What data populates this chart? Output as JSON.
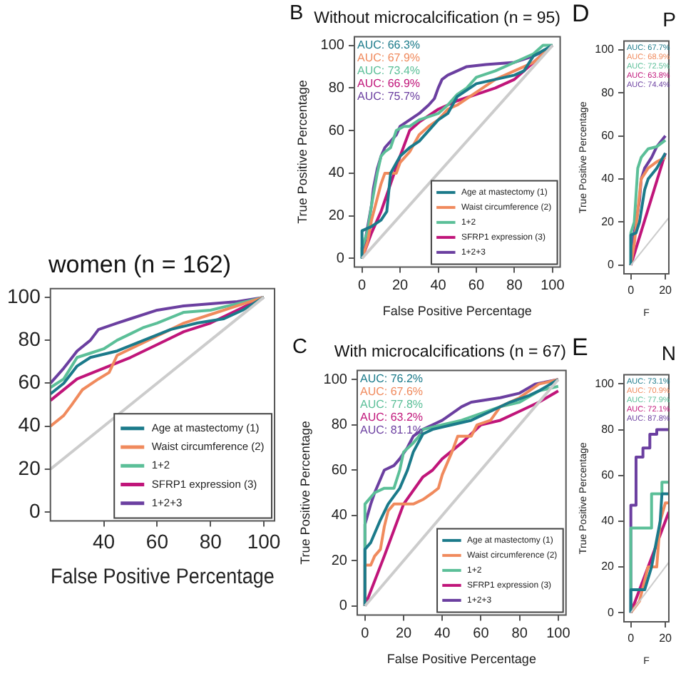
{
  "chart_data": [
    {
      "type": "line",
      "title": "women (n = 162)",
      "xlabel": "False Positive Percentage",
      "xlim": [
        20,
        104
      ],
      "xticks": [
        40,
        60,
        80,
        100
      ],
      "ylim": [
        -4,
        104
      ],
      "yticks": [
        0,
        20,
        40,
        60,
        80,
        100
      ],
      "legend": "bottom right",
      "series": [
        {
          "x": [
            20,
            100
          ],
          "values": [
            20,
            100
          ],
          "color": "#cccccc"
        },
        {
          "name": "Age at mastectomy (1)",
          "color": "#1b7a8a",
          "x": [
            20,
            25,
            30,
            35,
            45,
            55,
            65,
            75,
            85,
            92,
            100
          ],
          "values": [
            55,
            60,
            68,
            72,
            75,
            80,
            85,
            88,
            90,
            94,
            100
          ]
        },
        {
          "name": "Waist circumference (2)",
          "color": "#f08a5d",
          "x": [
            20,
            25,
            28,
            32,
            38,
            42,
            45,
            50,
            60,
            70,
            80,
            90,
            100
          ],
          "values": [
            40,
            45,
            50,
            57,
            62,
            65,
            73,
            76,
            82,
            88,
            92,
            96,
            100
          ]
        },
        {
          "name": "1+2",
          "color": "#5bbf98",
          "x": [
            20,
            25,
            30,
            35,
            40,
            45,
            50,
            55,
            60,
            70,
            80,
            90,
            100
          ],
          "values": [
            58,
            62,
            72,
            74,
            76,
            80,
            83,
            86,
            88,
            93,
            94,
            97,
            100
          ]
        },
        {
          "name": "SFRP1 expression (3)",
          "color": "#c0157a",
          "x": [
            20,
            30,
            40,
            50,
            60,
            70,
            80,
            90,
            100
          ],
          "values": [
            52,
            62,
            67,
            72,
            78,
            84,
            88,
            94,
            100
          ]
        },
        {
          "name": "1+2+3",
          "color": "#6b3fa0",
          "x": [
            20,
            25,
            30,
            35,
            38,
            45,
            50,
            60,
            70,
            80,
            90,
            100
          ],
          "values": [
            60,
            67,
            75,
            80,
            85,
            88,
            90,
            94,
            96,
            97,
            98,
            100
          ]
        }
      ]
    },
    {
      "type": "line",
      "title": "Without microcalcification (n = 95)",
      "xlabel": "False Positive Percentage",
      "ylabel": "True Positive Percentage",
      "xlim": [
        -4,
        104
      ],
      "xticks": [
        0,
        20,
        40,
        60,
        80,
        100
      ],
      "ylim": [
        -4,
        104
      ],
      "yticks": [
        0,
        20,
        40,
        60,
        80,
        100
      ],
      "legend": "bottom right",
      "annotations": [
        "B",
        "AUC: 66.3%",
        "AUC: 67.9%",
        "AUC: 73.4%",
        "AUC: 66.9%",
        "AUC: 75.7%"
      ],
      "series": [
        {
          "x": [
            0,
            100
          ],
          "values": [
            0,
            100
          ],
          "color": "#cccccc"
        },
        {
          "name": "Age at mastectomy (1)",
          "color": "#1b7a8a",
          "x": [
            0,
            0,
            5,
            10,
            13,
            15,
            20,
            25,
            30,
            35,
            40,
            45,
            50,
            60,
            70,
            80,
            85,
            90,
            100
          ],
          "values": [
            0,
            13,
            15,
            18,
            22,
            40,
            48,
            52,
            55,
            60,
            65,
            68,
            76,
            82,
            84,
            86,
            88,
            95,
            100
          ]
        },
        {
          "name": "Waist circumference (2)",
          "color": "#f08a5d",
          "x": [
            0,
            3,
            5,
            10,
            12,
            18,
            20,
            25,
            30,
            35,
            40,
            45,
            50,
            60,
            70,
            80,
            90,
            100
          ],
          "values": [
            0,
            8,
            18,
            35,
            40,
            40,
            45,
            50,
            58,
            62,
            65,
            70,
            72,
            78,
            84,
            88,
            92,
            100
          ]
        },
        {
          "name": "1+2",
          "color": "#5bbf98",
          "x": [
            0,
            0,
            3,
            5,
            8,
            10,
            12,
            15,
            18,
            22,
            25,
            30,
            40,
            45,
            50,
            55,
            60,
            70,
            80,
            90,
            95,
            100
          ],
          "values": [
            0,
            5,
            13,
            25,
            40,
            48,
            50,
            52,
            60,
            62,
            62,
            65,
            68,
            72,
            77,
            80,
            85,
            88,
            92,
            96,
            100,
            100
          ]
        },
        {
          "name": "SFRP1 expression (3)",
          "color": "#c0157a",
          "x": [
            0,
            5,
            10,
            15,
            20,
            25,
            30,
            40,
            50,
            60,
            70,
            80,
            90,
            100
          ],
          "values": [
            0,
            12,
            22,
            35,
            48,
            60,
            64,
            70,
            74,
            77,
            80,
            84,
            92,
            100
          ]
        },
        {
          "name": "1+2+3",
          "color": "#6b3fa0",
          "x": [
            0,
            2,
            5,
            6,
            8,
            10,
            12,
            15,
            18,
            20,
            25,
            30,
            35,
            38,
            40,
            42,
            45,
            50,
            55,
            65,
            80,
            90,
            95,
            100
          ],
          "values": [
            0,
            10,
            25,
            33,
            42,
            48,
            52,
            55,
            58,
            62,
            65,
            68,
            72,
            75,
            80,
            84,
            86,
            88,
            90,
            91,
            92,
            95,
            97,
            100
          ]
        }
      ]
    },
    {
      "type": "line",
      "title": "With microcalcifications (n = 67)",
      "xlabel": "False Positive Percentage",
      "ylabel": "True Positive Percentage",
      "xlim": [
        -4,
        104
      ],
      "xticks": [
        0,
        20,
        40,
        60,
        80,
        100
      ],
      "ylim": [
        -4,
        104
      ],
      "yticks": [
        0,
        20,
        40,
        60,
        80,
        100
      ],
      "legend": "bottom right",
      "annotations": [
        "C",
        "AUC: 76.2%",
        "AUC: 67.6%",
        "AUC: 77.8%",
        "AUC: 63.2%",
        "AUC: 81.1%"
      ],
      "series": [
        {
          "x": [
            0,
            100
          ],
          "values": [
            0,
            100
          ],
          "color": "#cccccc"
        },
        {
          "name": "Age at mastectomy (1)",
          "color": "#1b7a8a",
          "x": [
            0,
            0,
            3,
            8,
            12,
            18,
            22,
            25,
            30,
            35,
            45,
            55,
            65,
            75,
            85,
            90,
            100
          ],
          "values": [
            0,
            25,
            28,
            38,
            45,
            52,
            60,
            68,
            76,
            78,
            80,
            82,
            86,
            90,
            93,
            95,
            100
          ]
        },
        {
          "name": "Waist circumference (2)",
          "color": "#f08a5d",
          "x": [
            0,
            0,
            3,
            5,
            8,
            10,
            12,
            15,
            25,
            30,
            35,
            38,
            40,
            45,
            48,
            55,
            58,
            65,
            70,
            80,
            90,
            100
          ],
          "values": [
            0,
            18,
            18,
            22,
            25,
            35,
            42,
            45,
            45,
            47,
            50,
            52,
            58,
            68,
            75,
            75,
            80,
            82,
            88,
            92,
            98,
            100
          ]
        },
        {
          "name": "1+2",
          "color": "#5bbf98",
          "x": [
            0,
            0,
            5,
            10,
            15,
            18,
            20,
            25,
            28,
            30,
            40,
            50,
            60,
            70,
            80,
            90,
            100
          ],
          "values": [
            0,
            45,
            50,
            52,
            52,
            60,
            68,
            72,
            75,
            78,
            80,
            82,
            85,
            88,
            90,
            95,
            97
          ]
        },
        {
          "name": "SFRP1 expression (3)",
          "color": "#c0157a",
          "x": [
            0,
            10,
            20,
            30,
            35,
            40,
            50,
            60,
            70,
            80,
            90,
            100
          ],
          "values": [
            0,
            22,
            45,
            57,
            60,
            65,
            72,
            80,
            82,
            86,
            90,
            95
          ]
        },
        {
          "name": "1+2+3",
          "color": "#6b3fa0",
          "x": [
            0,
            0,
            3,
            5,
            10,
            15,
            18,
            22,
            25,
            30,
            35,
            40,
            45,
            50,
            55,
            70,
            80,
            88,
            100
          ],
          "values": [
            0,
            36,
            45,
            50,
            60,
            62,
            65,
            70,
            75,
            78,
            80,
            82,
            85,
            88,
            90,
            92,
            94,
            98,
            100
          ]
        }
      ]
    },
    {
      "type": "line",
      "title": "P",
      "xlabel": "F",
      "ylabel": "True Positive Percentage",
      "xlim": [
        -4,
        22
      ],
      "xticks": [
        0,
        20
      ],
      "ylim": [
        -4,
        104
      ],
      "yticks": [
        0,
        20,
        40,
        60,
        80,
        100
      ],
      "annotations": [
        "D",
        "AUC: 67.7%",
        "AUC: 68.9%",
        "AUC: 72.5%",
        "AUC: 63.8%",
        "AUC: 74.4%"
      ],
      "series": [
        {
          "x": [
            0,
            22
          ],
          "values": [
            0,
            22
          ],
          "color": "#cccccc"
        },
        {
          "color": "#1b7a8a",
          "x": [
            0,
            0,
            3,
            5,
            8,
            10,
            15,
            20
          ],
          "values": [
            0,
            14,
            15,
            20,
            35,
            40,
            45,
            52
          ]
        },
        {
          "color": "#f08a5d",
          "x": [
            0,
            2,
            4,
            6,
            10,
            15,
            20
          ],
          "values": [
            0,
            10,
            25,
            40,
            45,
            48,
            50
          ]
        },
        {
          "color": "#5bbf98",
          "x": [
            0,
            0,
            2,
            4,
            6,
            10,
            15,
            20
          ],
          "values": [
            0,
            15,
            20,
            45,
            50,
            54,
            55,
            58
          ]
        },
        {
          "color": "#c0157a",
          "x": [
            0,
            20
          ],
          "values": [
            0,
            52
          ]
        },
        {
          "color": "#6b3fa0",
          "x": [
            0,
            2,
            5,
            6,
            8,
            12,
            15,
            20
          ],
          "values": [
            0,
            15,
            30,
            40,
            45,
            50,
            55,
            60
          ]
        }
      ]
    },
    {
      "type": "line",
      "title": "N",
      "xlabel": "F",
      "ylabel": "True Positive Percentage",
      "xlim": [
        -4,
        22
      ],
      "xticks": [
        0,
        20
      ],
      "ylim": [
        -4,
        104
      ],
      "yticks": [
        0,
        20,
        40,
        60,
        80,
        100
      ],
      "annotations": [
        "E",
        "AUC: 73.1%",
        "AUC: 70.9%",
        "AUC: 77.9%",
        "AUC: 72.1%",
        "AUC: 87.8%"
      ],
      "series": [
        {
          "x": [
            0,
            22
          ],
          "values": [
            0,
            22
          ],
          "color": "#cccccc"
        },
        {
          "color": "#1b7a8a",
          "x": [
            0,
            0,
            8,
            12,
            17,
            18,
            22
          ],
          "values": [
            0,
            10,
            10,
            20,
            40,
            52,
            52
          ]
        },
        {
          "color": "#f08a5d",
          "x": [
            0,
            5,
            10,
            15,
            17,
            20,
            22
          ],
          "values": [
            0,
            5,
            20,
            20,
            40,
            48,
            48
          ]
        },
        {
          "color": "#5bbf98",
          "x": [
            0,
            0,
            12,
            12,
            18,
            18,
            22
          ],
          "values": [
            0,
            37,
            37,
            52,
            52,
            57,
            57
          ]
        },
        {
          "color": "#c0157a",
          "x": [
            0,
            22
          ],
          "values": [
            0,
            44
          ]
        },
        {
          "color": "#6b3fa0",
          "x": [
            0,
            0,
            3,
            3,
            7,
            7,
            11,
            11,
            15,
            15,
            22
          ],
          "values": [
            0,
            47,
            47,
            68,
            68,
            72,
            72,
            78,
            78,
            80,
            80
          ]
        }
      ]
    }
  ]
}
